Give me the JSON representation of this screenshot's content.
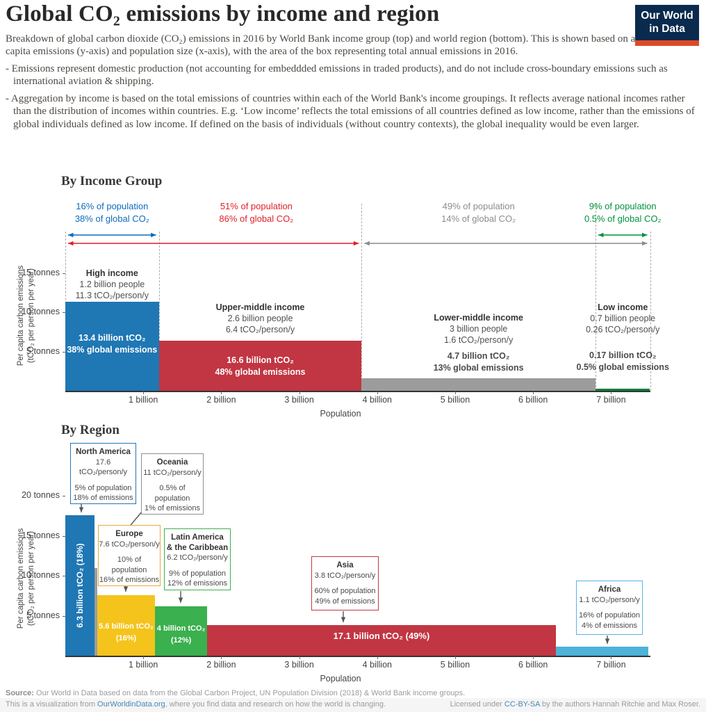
{
  "header": {
    "title": "Global CO₂ emissions by income and region",
    "logo_line1": "Our World",
    "logo_line2": "in Data",
    "intro": "Breakdown of global carbon dioxide (CO₂) emissions in 2016 by World Bank income group (top) and world region (bottom). This is shown based on average per capita emissions (y-axis) and population size (x-axis), with the area of the box representing total annual emissions in 2016.",
    "note1": "- Emissions represent domestic production (not accounting for embeddded emissions in traded products), and do not include cross-boundary emissions such as international aviation & shipping.",
    "note2": "- Aggregation by income is based on the total emissions of countries within each of the World Bank's income groupings. It reflects average national incomes rather than the distribution of incomes within countries. E.g. ‘Low income’ reflects the total emissions of all countries defined as low income, rather than the emissions of global individuals defined as low income.  If defined on the basis of individuals (without country contexts), the global inequality would be even larger."
  },
  "footer": {
    "source_label": "Source:",
    "source_text": " Our World in Data based on data from the Global Carbon Project, UN Population Division (2018) & World Bank income groups.",
    "viz_pre": "This is a visualization from ",
    "viz_link": "OurWorldinData.org",
    "viz_post": ", where you find data and research on how the world is changing.",
    "license_pre": "Licensed under ",
    "license_link": "CC-BY-SA",
    "license_post": " by the authors Hannah Ritchie and Max Roser."
  },
  "chart_data": [
    {
      "type": "marimekko",
      "title": "By Income Group",
      "xlabel": "Population",
      "ylabel": [
        "Per capita carbon emissions",
        "(tCO₂ per person per year)"
      ],
      "x_unit": "billion people",
      "xlim": [
        0,
        7.5
      ],
      "ylim": [
        0,
        16.5
      ],
      "x_ticks": [
        "1 billion",
        "2 billion",
        "3 billion",
        "4 billion",
        "5 billion",
        "6 billion",
        "7 billion"
      ],
      "x_tick_values": [
        1,
        2,
        3,
        4,
        5,
        6,
        7
      ],
      "y_ticks": [
        {
          "v": 5,
          "label": "5 tonnes"
        },
        {
          "v": 10,
          "label": "10 tonnes"
        },
        {
          "v": 15,
          "label": "15 tonnes"
        }
      ],
      "bars": [
        {
          "name": "High income",
          "population_billions": 1.2,
          "tco2_per_person": 11.3,
          "color": "#1f77b4",
          "label_lines": [
            "High income",
            "1.2 billion people",
            "11.3 tCO₂/person/y"
          ],
          "value_lines": [
            "13.4 billion tCO₂",
            "38% global emissions"
          ],
          "value_position": "inside"
        },
        {
          "name": "Upper-middle income",
          "population_billions": 2.6,
          "tco2_per_person": 6.4,
          "color": "#c13642",
          "label_lines": [
            "Upper-middle income",
            "2.6 billion people",
            "6.4 tCO₂/person/y"
          ],
          "value_lines": [
            "16.6 billion tCO₂",
            "48% global emissions"
          ],
          "value_position": "inside"
        },
        {
          "name": "Lower-middle income",
          "population_billions": 3.0,
          "tco2_per_person": 1.6,
          "color": "#9c9c9c",
          "label_lines": [
            "Lower-middle income",
            "3 billion people",
            "1.6 tCO₂/person/y"
          ],
          "value_lines": [
            "4.7 billion tCO₂",
            "13% global emissions"
          ],
          "value_position": "above"
        },
        {
          "name": "Low income",
          "population_billions": 0.7,
          "tco2_per_person": 0.26,
          "color": "#00813c",
          "label_lines": [
            "Low income",
            "0.7 billion people",
            "0.26 tCO₂/person/y"
          ],
          "value_lines": [
            "0.17 billion tCO₂",
            "0.5% global emissions"
          ],
          "value_position": "above"
        }
      ],
      "brackets": [
        {
          "lines": [
            "16% of population",
            "38% of global CO₂"
          ],
          "color": "#0c6cbd",
          "from_billion": 0,
          "to_billion": 1.2,
          "row": "upper",
          "text_center_billion": 0.6
        },
        {
          "lines": [
            "51% of population",
            "86% of global CO₂"
          ],
          "color": "#e01f26",
          "from_billion": 0,
          "to_billion": 3.8,
          "row": "lower",
          "text_center_billion": 2.45
        },
        {
          "lines": [
            "49% of population",
            "14% of global CO₂"
          ],
          "color": "#8c8c8c",
          "from_billion": 3.8,
          "to_billion": 7.5,
          "row": "lower",
          "text_center_billion": 5.3
        },
        {
          "lines": [
            "9% of population",
            "0.5% of global CO₂"
          ],
          "color": "#00913f",
          "from_billion": 6.8,
          "to_billion": 7.5,
          "row": "upper",
          "text_center_billion": 7.15
        }
      ],
      "divider_billions": [
        0,
        1.2,
        3.8,
        6.8,
        7.5
      ]
    },
    {
      "type": "marimekko",
      "title": "By Region",
      "xlabel": "Population",
      "ylabel": [
        "Per capita carbon emissions",
        "(tCO₂ per person per year)"
      ],
      "x_unit": "billion people",
      "xlim": [
        0,
        7.5
      ],
      "ylim": [
        0,
        21
      ],
      "x_ticks": [
        "1 billion",
        "2 billion",
        "3 billion",
        "4 billion",
        "5 billion",
        "6 billion",
        "7 billion"
      ],
      "x_tick_values": [
        1,
        2,
        3,
        4,
        5,
        6,
        7
      ],
      "y_ticks": [
        {
          "v": 5,
          "label": "5 tonnes"
        },
        {
          "v": 10,
          "label": "10 tonnes"
        },
        {
          "v": 15,
          "label": "15 tonnes"
        },
        {
          "v": 20,
          "label": "20 tonnes"
        }
      ],
      "bars": [
        {
          "name": "North America",
          "population_billions": 0.37,
          "tco2_per_person": 17.6,
          "color": "#1f77b4",
          "value_lines": [
            "6.3 billion tCO₂ (18%)"
          ],
          "value_position": "inside-vertical"
        },
        {
          "name": "Oceania",
          "population_billions": 0.04,
          "tco2_per_person": 11,
          "color": "#9c9c9c"
        },
        {
          "name": "Europe",
          "population_billions": 0.74,
          "tco2_per_person": 7.6,
          "color": "#f4c41c",
          "value_lines": [
            "5.6 billion tCO₂",
            "(16%)"
          ],
          "value_position": "inside"
        },
        {
          "name": "Latin America & the Caribbean",
          "population_billions": 0.67,
          "tco2_per_person": 6.2,
          "color": "#3ab04e",
          "value_lines": [
            "4 billion tCO₂",
            "(12%)"
          ],
          "value_position": "inside"
        },
        {
          "name": "Asia",
          "population_billions": 4.47,
          "tco2_per_person": 3.8,
          "color": "#c13642",
          "value_lines": [
            "17.1 billion tCO₂ (49%)"
          ],
          "value_position": "inside"
        },
        {
          "name": "Africa",
          "population_billions": 1.19,
          "tco2_per_person": 1.1,
          "color": "#4db3d9"
        }
      ],
      "callouts": [
        {
          "title": [
            "North America"
          ],
          "per_capita": "17.6 tCO₂/person/y",
          "population": "5% of population",
          "emissions": "18% of emissions",
          "border_color": "#1f77b4",
          "target": "North America"
        },
        {
          "title": [
            "Oceania"
          ],
          "per_capita": "11 tCO₂/person/y",
          "population": "0.5% of population",
          "emissions": "1% of emissions",
          "border_color": "#8f8f8f",
          "target": "Oceania"
        },
        {
          "title": [
            "Europe"
          ],
          "per_capita": "7.6 tCO₂/person/y",
          "population": "10% of population",
          "emissions": "16% of emissions",
          "border_color": "#e8a83c",
          "target": "Europe"
        },
        {
          "title": [
            "Latin America",
            "& the Caribbean"
          ],
          "per_capita": "6.2 tCO₂/person/y",
          "population": "9% of population",
          "emissions": "12% of emissions",
          "border_color": "#3ab04e",
          "target": "Latin America & the Caribbean"
        },
        {
          "title": [
            "Asia"
          ],
          "per_capita": "3.8 tCO₂/person/y",
          "population": "60% of population",
          "emissions": "49% of emissions",
          "border_color": "#c13642",
          "target": "Asia"
        },
        {
          "title": [
            "Africa"
          ],
          "per_capita": "1.1 tCO₂/person/y",
          "population": "16% of population",
          "emissions": "4% of emissions",
          "border_color": "#56b4e9",
          "target": "Africa"
        }
      ]
    }
  ]
}
